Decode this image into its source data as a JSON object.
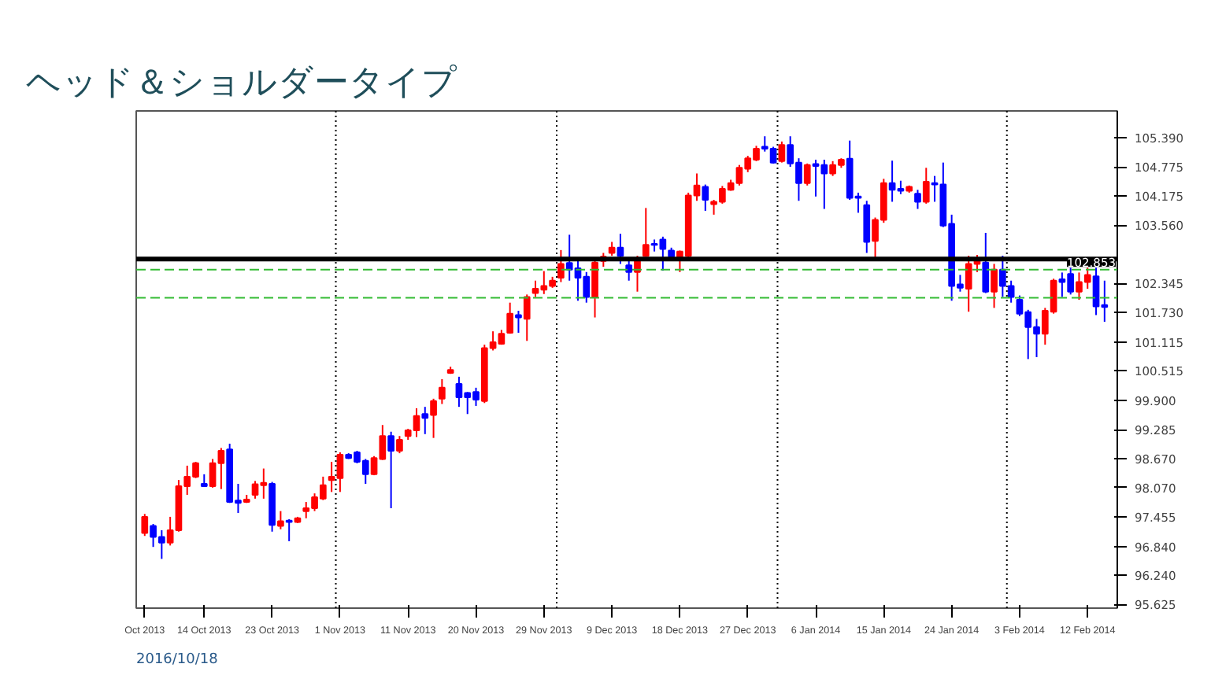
{
  "chart_data": {
    "type": "candlestick",
    "title": "ヘッド＆ショルダータイプ",
    "annotations": [
      "2016/10/18"
    ],
    "categories": [
      "Oct 2013",
      null,
      null,
      null,
      null,
      null,
      null,
      "14 Oct 2013",
      null,
      null,
      null,
      null,
      null,
      null,
      null,
      "23 Oct 2013",
      null,
      null,
      null,
      null,
      null,
      null,
      null,
      "1 Nov 2013",
      null,
      null,
      null,
      null,
      null,
      null,
      null,
      "11 Nov 2013",
      null,
      null,
      null,
      null,
      null,
      null,
      null,
      "20 Nov 2013",
      null,
      null,
      null,
      null,
      null,
      null,
      null,
      "29 Nov 2013",
      null,
      null,
      null,
      null,
      null,
      null,
      null,
      "9 Dec 2013",
      null,
      null,
      null,
      null,
      null,
      null,
      null,
      "18 Dec 2013",
      null,
      null,
      null,
      null,
      null,
      null,
      null,
      "27 Dec 2013",
      null,
      null,
      null,
      null,
      null,
      null,
      null,
      "6 Jan 2014",
      null,
      null,
      null,
      null,
      null,
      null,
      null,
      "15 Jan 2014",
      null,
      null,
      null,
      null,
      null,
      null,
      null,
      "24 Jan 2014",
      null,
      null,
      null,
      null,
      null,
      null,
      null,
      "3 Feb 2014",
      null,
      null,
      null,
      null,
      null,
      null,
      null,
      "12 Feb 2014",
      null,
      null
    ],
    "ohlc": [
      [
        97.12,
        97.52,
        97.06,
        97.46
      ],
      [
        97.27,
        97.31,
        96.83,
        97.04
      ],
      [
        97.04,
        97.18,
        96.58,
        96.92
      ],
      [
        96.92,
        97.46,
        96.86,
        97.18
      ],
      [
        97.18,
        98.23,
        97.15,
        98.1
      ],
      [
        98.1,
        98.53,
        97.92,
        98.3
      ],
      [
        98.3,
        98.61,
        98.27,
        98.58
      ],
      [
        98.15,
        98.35,
        98.1,
        98.1
      ],
      [
        98.1,
        98.67,
        98.07,
        98.58
      ],
      [
        98.58,
        98.9,
        98.04,
        98.84
      ],
      [
        98.87,
        98.99,
        97.75,
        97.77
      ],
      [
        97.8,
        98.15,
        97.54,
        97.75
      ],
      [
        97.77,
        97.92,
        97.75,
        97.82
      ],
      [
        97.92,
        98.21,
        97.84,
        98.14
      ],
      [
        98.12,
        98.47,
        97.84,
        98.17
      ],
      [
        98.15,
        98.19,
        97.15,
        97.29
      ],
      [
        97.27,
        97.58,
        97.2,
        97.37
      ],
      [
        97.38,
        97.41,
        96.95,
        97.35
      ],
      [
        97.35,
        97.46,
        97.33,
        97.43
      ],
      [
        97.58,
        97.77,
        97.43,
        97.64
      ],
      [
        97.64,
        97.95,
        97.58,
        97.87
      ],
      [
        97.84,
        98.3,
        97.81,
        98.12
      ],
      [
        98.23,
        98.61,
        97.98,
        98.3
      ],
      [
        98.27,
        98.81,
        97.98,
        98.76
      ],
      [
        98.76,
        98.79,
        98.67,
        98.69
      ],
      [
        98.81,
        98.84,
        98.58,
        98.61
      ],
      [
        98.63,
        98.67,
        98.15,
        98.35
      ],
      [
        98.35,
        98.73,
        98.33,
        98.69
      ],
      [
        98.67,
        99.38,
        98.65,
        99.15
      ],
      [
        99.15,
        99.24,
        97.64,
        98.84
      ],
      [
        98.84,
        99.15,
        98.79,
        99.07
      ],
      [
        99.15,
        99.3,
        99.07,
        99.27
      ],
      [
        99.27,
        99.73,
        99.13,
        99.57
      ],
      [
        99.61,
        99.76,
        99.19,
        99.53
      ],
      [
        99.59,
        99.93,
        99.11,
        99.88
      ],
      [
        99.93,
        100.34,
        99.82,
        100.16
      ],
      [
        100.47,
        100.6,
        100.45,
        100.53
      ],
      [
        100.24,
        100.39,
        99.76,
        99.96
      ],
      [
        100.05,
        100.07,
        99.61,
        99.96
      ],
      [
        100.07,
        100.16,
        99.78,
        99.91
      ],
      [
        99.88,
        101.06,
        99.84,
        100.99
      ],
      [
        100.99,
        101.34,
        100.94,
        101.11
      ],
      [
        101.08,
        101.37,
        101.06,
        101.29
      ],
      [
        101.31,
        101.94,
        101.29,
        101.71
      ],
      [
        101.68,
        101.77,
        101.31,
        101.63
      ],
      [
        101.6,
        102.11,
        101.14,
        102.06
      ],
      [
        102.14,
        102.4,
        102.06,
        102.23
      ],
      [
        102.21,
        102.6,
        102.12,
        102.29
      ],
      [
        102.29,
        102.48,
        102.25,
        102.4
      ],
      [
        102.46,
        103.04,
        102.37,
        102.75
      ],
      [
        102.77,
        103.36,
        102.4,
        102.63
      ],
      [
        102.66,
        102.81,
        101.98,
        102.46
      ],
      [
        102.48,
        102.58,
        101.94,
        102.06
      ],
      [
        102.06,
        102.81,
        101.63,
        102.78
      ],
      [
        102.81,
        102.98,
        102.69,
        102.9
      ],
      [
        102.98,
        103.21,
        102.92,
        103.09
      ],
      [
        103.09,
        103.38,
        102.75,
        102.92
      ],
      [
        102.72,
        102.83,
        102.4,
        102.58
      ],
      [
        102.58,
        102.92,
        102.17,
        102.86
      ],
      [
        102.92,
        103.92,
        102.9,
        103.15
      ],
      [
        103.17,
        103.26,
        103.01,
        103.15
      ],
      [
        103.26,
        103.32,
        102.61,
        103.06
      ],
      [
        103.03,
        103.09,
        102.83,
        102.9
      ],
      [
        102.9,
        103.03,
        102.58,
        103.01
      ],
      [
        102.92,
        104.24,
        102.81,
        104.18
      ],
      [
        104.18,
        104.64,
        104.07,
        104.39
      ],
      [
        104.36,
        104.41,
        103.86,
        104.09
      ],
      [
        104.0,
        104.09,
        103.78,
        104.05
      ],
      [
        104.05,
        104.38,
        104.01,
        104.32
      ],
      [
        104.3,
        104.51,
        104.28,
        104.44
      ],
      [
        104.44,
        104.82,
        104.39,
        104.76
      ],
      [
        104.74,
        105.01,
        104.67,
        104.96
      ],
      [
        104.93,
        105.22,
        104.9,
        105.16
      ],
      [
        105.2,
        105.42,
        105.1,
        105.16
      ],
      [
        105.16,
        105.2,
        104.85,
        104.87
      ],
      [
        104.9,
        105.31,
        104.87,
        105.24
      ],
      [
        105.24,
        105.42,
        104.78,
        104.85
      ],
      [
        104.87,
        104.96,
        104.07,
        104.44
      ],
      [
        104.44,
        104.85,
        104.39,
        104.82
      ],
      [
        104.84,
        104.93,
        104.16,
        104.8
      ],
      [
        104.82,
        104.93,
        103.9,
        104.64
      ],
      [
        104.64,
        104.9,
        104.59,
        104.82
      ],
      [
        104.82,
        104.96,
        104.76,
        104.93
      ],
      [
        104.95,
        105.33,
        104.09,
        104.13
      ],
      [
        104.16,
        104.24,
        103.82,
        104.13
      ],
      [
        103.98,
        104.07,
        102.98,
        103.21
      ],
      [
        103.23,
        103.72,
        102.86,
        103.67
      ],
      [
        103.67,
        104.53,
        103.61,
        104.44
      ],
      [
        104.44,
        104.91,
        104.05,
        104.3
      ],
      [
        104.32,
        104.49,
        104.21,
        104.28
      ],
      [
        104.28,
        104.39,
        104.24,
        104.36
      ],
      [
        104.22,
        104.3,
        103.9,
        104.05
      ],
      [
        104.05,
        104.76,
        104.01,
        104.47
      ],
      [
        104.44,
        104.59,
        104.05,
        104.41
      ],
      [
        104.41,
        104.87,
        103.52,
        103.55
      ],
      [
        103.59,
        103.78,
        101.98,
        102.29
      ],
      [
        102.32,
        102.52,
        102.17,
        102.25
      ],
      [
        102.23,
        102.92,
        101.75,
        102.75
      ],
      [
        102.75,
        102.94,
        102.58,
        102.81
      ],
      [
        102.78,
        103.4,
        102.14,
        102.17
      ],
      [
        102.17,
        102.75,
        101.83,
        102.63
      ],
      [
        102.63,
        102.92,
        102.06,
        102.29
      ],
      [
        102.29,
        102.4,
        101.94,
        102.06
      ],
      [
        102.0,
        102.09,
        101.66,
        101.71
      ],
      [
        101.74,
        101.79,
        100.76,
        101.43
      ],
      [
        101.43,
        101.6,
        100.8,
        101.29
      ],
      [
        101.29,
        101.83,
        101.06,
        101.77
      ],
      [
        101.75,
        102.44,
        101.71,
        102.4
      ],
      [
        102.43,
        102.57,
        102.06,
        102.37
      ],
      [
        102.54,
        102.67,
        102.11,
        102.17
      ],
      [
        102.17,
        102.57,
        102.0,
        102.37
      ],
      [
        102.37,
        102.67,
        102.23,
        102.52
      ],
      [
        102.49,
        102.67,
        101.68,
        101.86
      ],
      [
        101.89,
        102.4,
        101.54,
        101.85
      ]
    ],
    "colors": [
      "#ff0000",
      "#0000ff",
      "#0000ff",
      "#ff0000",
      "#ff0000",
      "#ff0000",
      "#ff0000",
      "#0000ff",
      "#ff0000",
      "#ff0000",
      "#0000ff",
      "#0000ff",
      "#ff0000",
      "#ff0000",
      "#ff0000",
      "#0000ff",
      "#ff0000",
      "#0000ff",
      "#ff0000",
      "#ff0000",
      "#ff0000",
      "#ff0000",
      "#ff0000",
      "#ff0000",
      "#0000ff",
      "#0000ff",
      "#0000ff",
      "#ff0000",
      "#ff0000",
      "#0000ff",
      "#ff0000",
      "#ff0000",
      "#ff0000",
      "#0000ff",
      "#ff0000",
      "#ff0000",
      "#ff0000",
      "#0000ff",
      "#0000ff",
      "#0000ff",
      "#ff0000",
      "#ff0000",
      "#ff0000",
      "#ff0000",
      "#0000ff",
      "#ff0000",
      "#ff0000",
      "#ff0000",
      "#ff0000",
      "#ff0000",
      "#0000ff",
      "#0000ff",
      "#0000ff",
      "#ff0000",
      "#ff0000",
      "#ff0000",
      "#0000ff",
      "#0000ff",
      "#ff0000",
      "#ff0000",
      "#0000ff",
      "#0000ff",
      "#0000ff",
      "#ff0000",
      "#ff0000",
      "#ff0000",
      "#0000ff",
      "#ff0000",
      "#ff0000",
      "#ff0000",
      "#ff0000",
      "#ff0000",
      "#ff0000",
      "#0000ff",
      "#0000ff",
      "#ff0000",
      "#0000ff",
      "#0000ff",
      "#ff0000",
      "#0000ff",
      "#0000ff",
      "#ff0000",
      "#ff0000",
      "#0000ff",
      "#0000ff",
      "#0000ff",
      "#ff0000",
      "#ff0000",
      "#0000ff",
      "#0000ff",
      "#ff0000",
      "#0000ff",
      "#ff0000",
      "#0000ff",
      "#0000ff",
      "#0000ff",
      "#0000ff",
      "#ff0000",
      "#ff0000",
      "#0000ff",
      "#ff0000",
      "#0000ff",
      "#0000ff",
      "#0000ff",
      "#0000ff",
      "#0000ff",
      "#ff0000",
      "#ff0000",
      "#0000ff",
      "#0000ff",
      "#ff0000",
      "#ff0000",
      "#0000ff",
      "#0000ff"
    ],
    "ylim": [
      95.55,
      105.95
    ],
    "yticks": [
      95.625,
      {
        "value": 96.24,
        "label": "96.240"
      },
      {
        "value": 96.84,
        "label": "96.840"
      },
      97.455,
      {
        "value": 98.07,
        "label": "98.070"
      },
      {
        "value": 98.67,
        "label": "98.670"
      },
      99.285,
      {
        "value": 99.9,
        "label": "99.900"
      },
      100.515,
      101.115,
      {
        "value": 101.73,
        "label": "101.730"
      },
      102.345,
      {
        "value": 103.56,
        "label": "103.560"
      },
      104.175,
      104.775,
      {
        "value": 105.39,
        "label": "105.390"
      }
    ],
    "ref_lines": [
      {
        "axis": "y",
        "value": 102.853,
        "label": "102.853",
        "color": "#000000",
        "line_style": "solid"
      },
      {
        "axis": "y",
        "value": 102.63,
        "color": "#33bb33",
        "line_style": "dashed"
      },
      {
        "axis": "y",
        "value": 102.04,
        "color": "#33bb33",
        "line_style": "dashed"
      }
    ],
    "grid": false
  }
}
